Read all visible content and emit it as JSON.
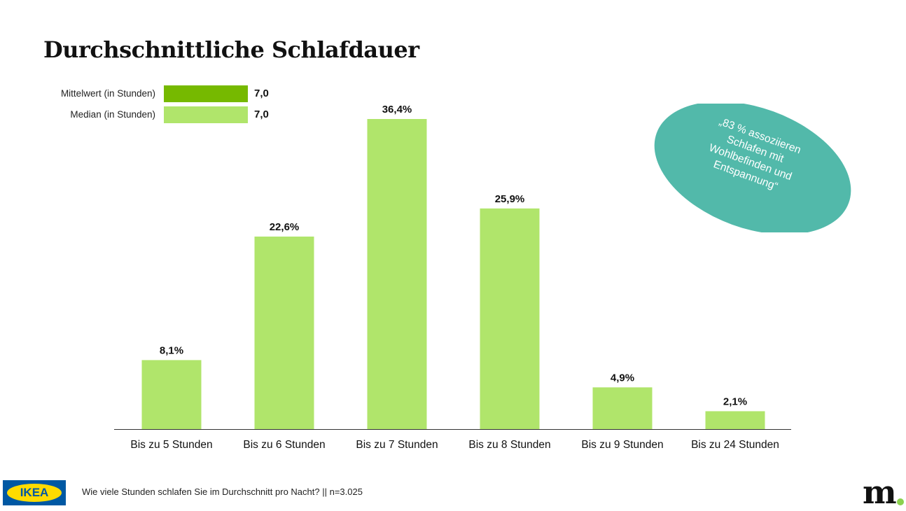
{
  "title": "Durchschnittliche Schlafdauer",
  "legend": [
    {
      "label": "Mittelwert (in Stunden)",
      "value": "7,0",
      "color": "#76b900"
    },
    {
      "label": "Median (in Stunden)",
      "value": "7,0",
      "color": "#b0e56b"
    }
  ],
  "callout": {
    "text": "„83 % assoziieren Schlafen mit Wohlbefinden und Entspannung“",
    "color": "#52b9aa"
  },
  "footer": {
    "question": "Wie viele Stunden schlafen Sie im Durchschnitt pro Nacht? || n=3.025",
    "logo": "IKEA",
    "brand_logo": "m"
  },
  "chart_data": {
    "type": "bar",
    "categories": [
      "Bis zu 5 Stunden",
      "Bis zu 6 Stunden",
      "Bis zu 7 Stunden",
      "Bis zu 8 Stunden",
      "Bis zu 9 Stunden",
      "Bis zu 24 Stunden"
    ],
    "values": [
      8.1,
      22.6,
      36.4,
      25.9,
      4.9,
      2.1
    ],
    "labels": [
      "8,1%",
      "22,6%",
      "36,4%",
      "25,9%",
      "4,9%",
      "2,1%"
    ],
    "bar_color": "#b0e56b",
    "ylim": [
      0,
      40
    ],
    "grid": false
  }
}
